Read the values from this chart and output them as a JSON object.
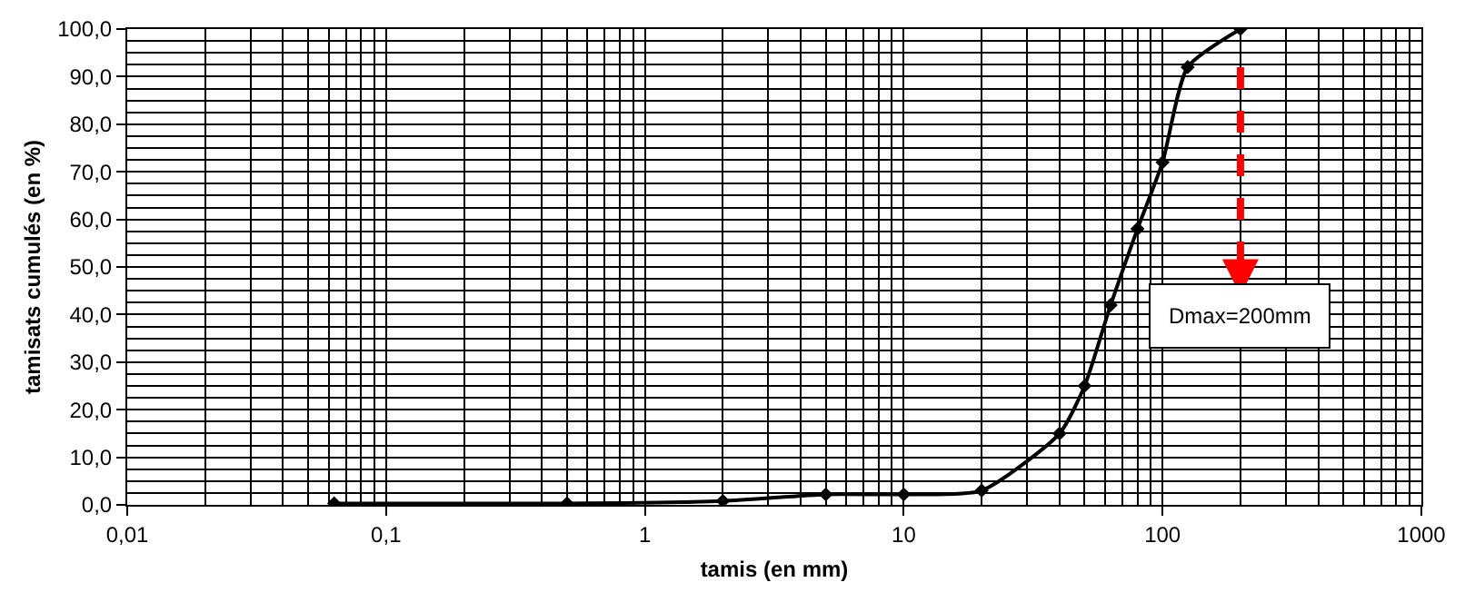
{
  "chart_data": {
    "type": "line",
    "xlabel": "tamis (en mm)",
    "ylabel": "tamisats cumulés (en %)",
    "x": [
      0.063,
      0.5,
      2,
      5,
      10,
      20,
      40,
      50,
      63,
      80,
      100,
      125,
      200
    ],
    "series": [
      {
        "color": "#000000",
        "values": [
          0.3,
          0.3,
          0.8,
          2.2,
          2.2,
          3,
          15,
          25,
          42,
          58,
          72,
          92,
          100
        ]
      }
    ],
    "log": "x",
    "xlim": [
      0.01,
      1000
    ],
    "xticks": [
      {
        "value": 0.01,
        "label": "0,01"
      },
      {
        "value": 0.1,
        "label": "0,1"
      },
      1,
      10,
      100,
      1000
    ],
    "ylim": [
      0,
      100
    ],
    "yticks": [
      {
        "value": 0,
        "label": "0,0"
      },
      {
        "value": 10,
        "label": "10,0"
      },
      {
        "value": 20,
        "label": "20,0"
      },
      {
        "value": 30,
        "label": "30,0"
      },
      {
        "value": 40,
        "label": "40,0"
      },
      {
        "value": 50,
        "label": "50,0"
      },
      {
        "value": 60,
        "label": "60,0"
      },
      {
        "value": 70,
        "label": "70,0"
      },
      {
        "value": 80,
        "label": "80,0"
      },
      {
        "value": 90,
        "label": "90,0"
      },
      {
        "value": 100,
        "label": "100,0"
      }
    ],
    "ref_lines": [
      {
        "axis": "x",
        "value": 200,
        "color": "#ff0000",
        "line_style": "dashed"
      }
    ],
    "annotations": [
      "Dmax=200mm"
    ],
    "grid": true,
    "marker": "diamond",
    "line_style": "solid"
  }
}
